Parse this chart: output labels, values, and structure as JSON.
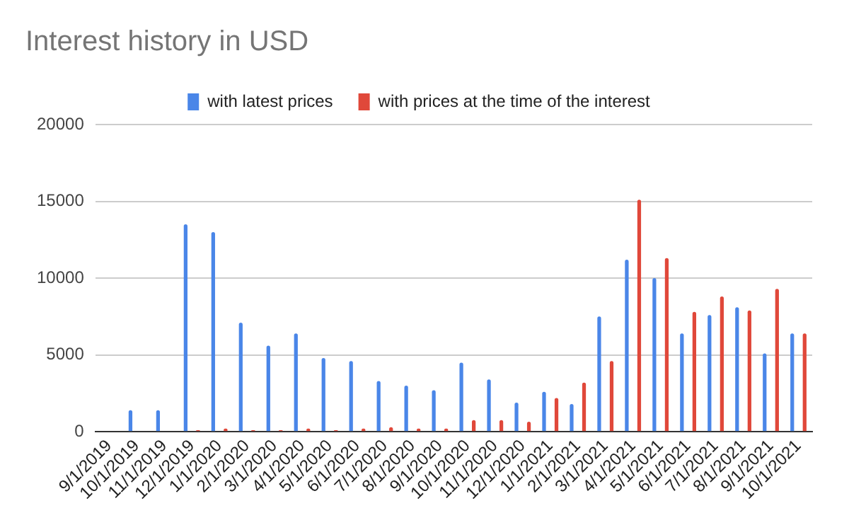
{
  "chart_data": {
    "type": "bar",
    "title": "Interest history in USD",
    "categories": [
      "9/1/2019",
      "10/1/2019",
      "11/1/2019",
      "12/1/2019",
      "1/1/2020",
      "2/1/2020",
      "3/1/2020",
      "4/1/2020",
      "5/1/2020",
      "6/1/2020",
      "7/1/2020",
      "8/1/2020",
      "9/1/2020",
      "10/1/2020",
      "11/1/2020",
      "12/1/2020",
      "1/1/2021",
      "2/1/2021",
      "3/1/2021",
      "4/1/2021",
      "5/1/2021",
      "6/1/2021",
      "7/1/2021",
      "8/1/2021",
      "9/1/2021",
      "10/1/2021"
    ],
    "series": [
      {
        "name": "with latest prices",
        "color": "#4a86e8",
        "values": [
          0,
          1400,
          1400,
          13500,
          13000,
          7100,
          5600,
          6400,
          4800,
          4600,
          3300,
          3000,
          2700,
          4500,
          3400,
          1900,
          2600,
          1800,
          7500,
          11200,
          10000,
          6400,
          7600,
          8100,
          5100,
          6400
        ]
      },
      {
        "name": "with prices at the time of the interest",
        "color": "#e0483a",
        "values": [
          0,
          0,
          0,
          100,
          200,
          100,
          100,
          200,
          100,
          200,
          300,
          200,
          200,
          750,
          750,
          650,
          2200,
          3200,
          4600,
          15100,
          11300,
          7800,
          8800,
          7900,
          9300,
          6400
        ]
      }
    ],
    "ylim": [
      0,
      20000
    ],
    "yticks": [
      0,
      5000,
      10000,
      15000,
      20000
    ],
    "grid": "y",
    "legend": "top"
  }
}
